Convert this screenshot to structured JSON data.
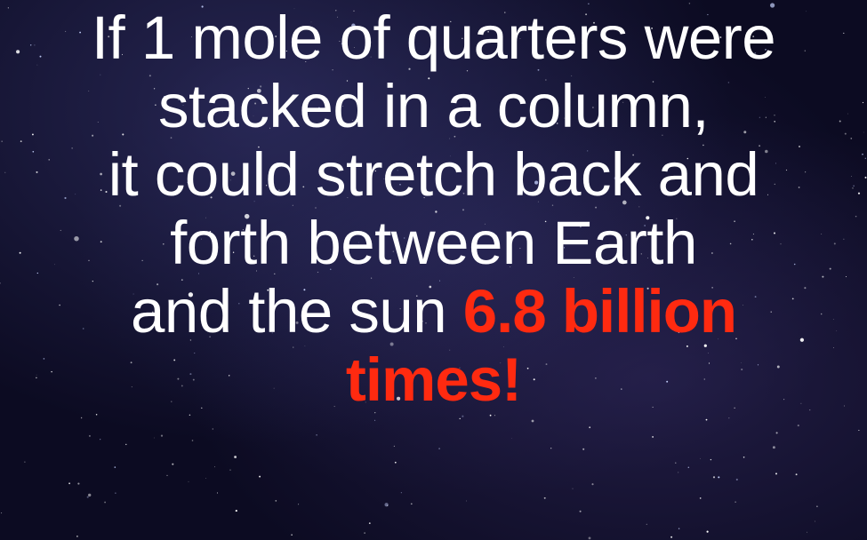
{
  "slide": {
    "background": "starry-night-sky",
    "text_color": "#ffffff",
    "highlight_color": "#ff2a10",
    "lines": [
      "If 1 mole of quarters were",
      "stacked in a column,",
      "it could stretch back and",
      "forth between Earth"
    ],
    "line5_prefix": "and the sun ",
    "highlight_1": "6.8 billion",
    "highlight_2": "times!"
  }
}
